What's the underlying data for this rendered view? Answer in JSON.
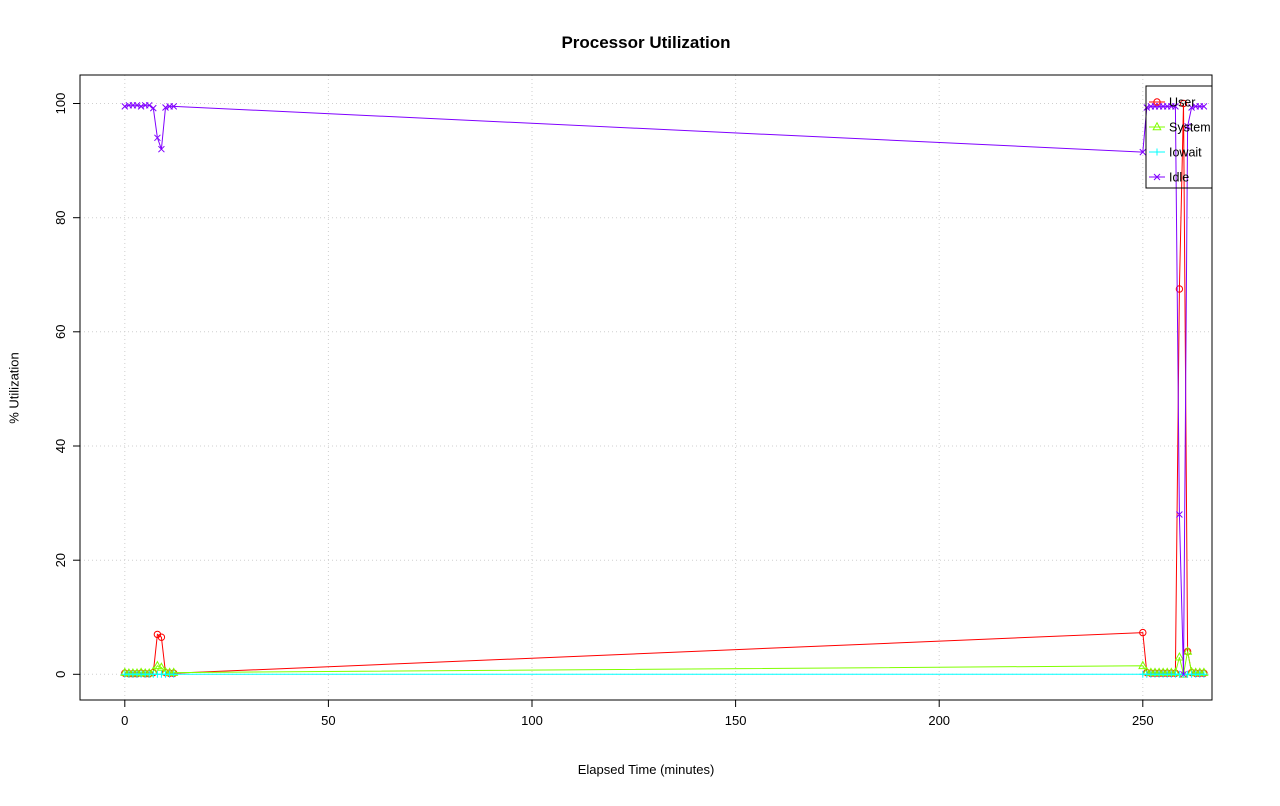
{
  "page": {
    "background": "#ffffff"
  },
  "chart_data": {
    "type": "line",
    "title": "Processor Utilization",
    "xlabel": "Elapsed Time (minutes)",
    "ylabel": "% Utilization",
    "xlim": [
      -11,
      267
    ],
    "ylim": [
      -4.5,
      105
    ],
    "x_ticks": [
      0,
      50,
      100,
      150,
      200,
      250
    ],
    "y_ticks": [
      0,
      20,
      40,
      60,
      80,
      100
    ],
    "grid": true,
    "grid_color": "#cfcfcf",
    "axis_color": "#000000",
    "legend_position": "top-right",
    "x": [
      0,
      1,
      2,
      3,
      4,
      5,
      6,
      7,
      8,
      9,
      10,
      11,
      12,
      250,
      251,
      252,
      253,
      254,
      255,
      256,
      257,
      258,
      259,
      260,
      261,
      262,
      263,
      264,
      265
    ],
    "series": [
      {
        "name": "User",
        "color": "#FF0000",
        "marker": "circle",
        "y": [
          0.2,
          0.1,
          0.1,
          0.1,
          0.2,
          0.1,
          0.1,
          0.3,
          7,
          6.5,
          0.3,
          0.2,
          0.2,
          7.3,
          0.3,
          0.2,
          0.2,
          0.2,
          0.2,
          0.2,
          0.2,
          0.2,
          67.5,
          100,
          4,
          0.3,
          0.2,
          0.2,
          0.2
        ]
      },
      {
        "name": "System",
        "color": "#80FF00",
        "marker": "triangle",
        "y": [
          0.3,
          0.2,
          0.2,
          0.2,
          0.3,
          0.2,
          0.2,
          0.5,
          1.5,
          1.2,
          0.4,
          0.3,
          0.3,
          1.5,
          0.4,
          0.3,
          0.3,
          0.3,
          0.3,
          0.3,
          0.3,
          0.3,
          3,
          0,
          4,
          0.4,
          0.3,
          0.3,
          0.3
        ]
      },
      {
        "name": "Iowait",
        "color": "#00FFFF",
        "marker": "plus",
        "y": [
          0,
          0,
          0,
          0,
          0,
          0,
          0,
          0,
          0,
          0,
          0,
          0,
          0,
          0,
          0,
          0,
          0,
          0,
          0,
          0,
          0,
          0,
          0,
          0,
          0,
          0,
          0,
          0,
          0
        ]
      },
      {
        "name": "Idle",
        "color": "#8000FF",
        "marker": "x",
        "y": [
          99.5,
          99.7,
          99.7,
          99.7,
          99.5,
          99.7,
          99.7,
          99.2,
          94,
          92,
          99.3,
          99.5,
          99.5,
          91.5,
          99.3,
          99.5,
          99.5,
          99.5,
          99.5,
          99.5,
          99.5,
          99.5,
          28,
          0,
          96,
          99.3,
          99.5,
          99.5,
          99.5
        ]
      }
    ]
  }
}
